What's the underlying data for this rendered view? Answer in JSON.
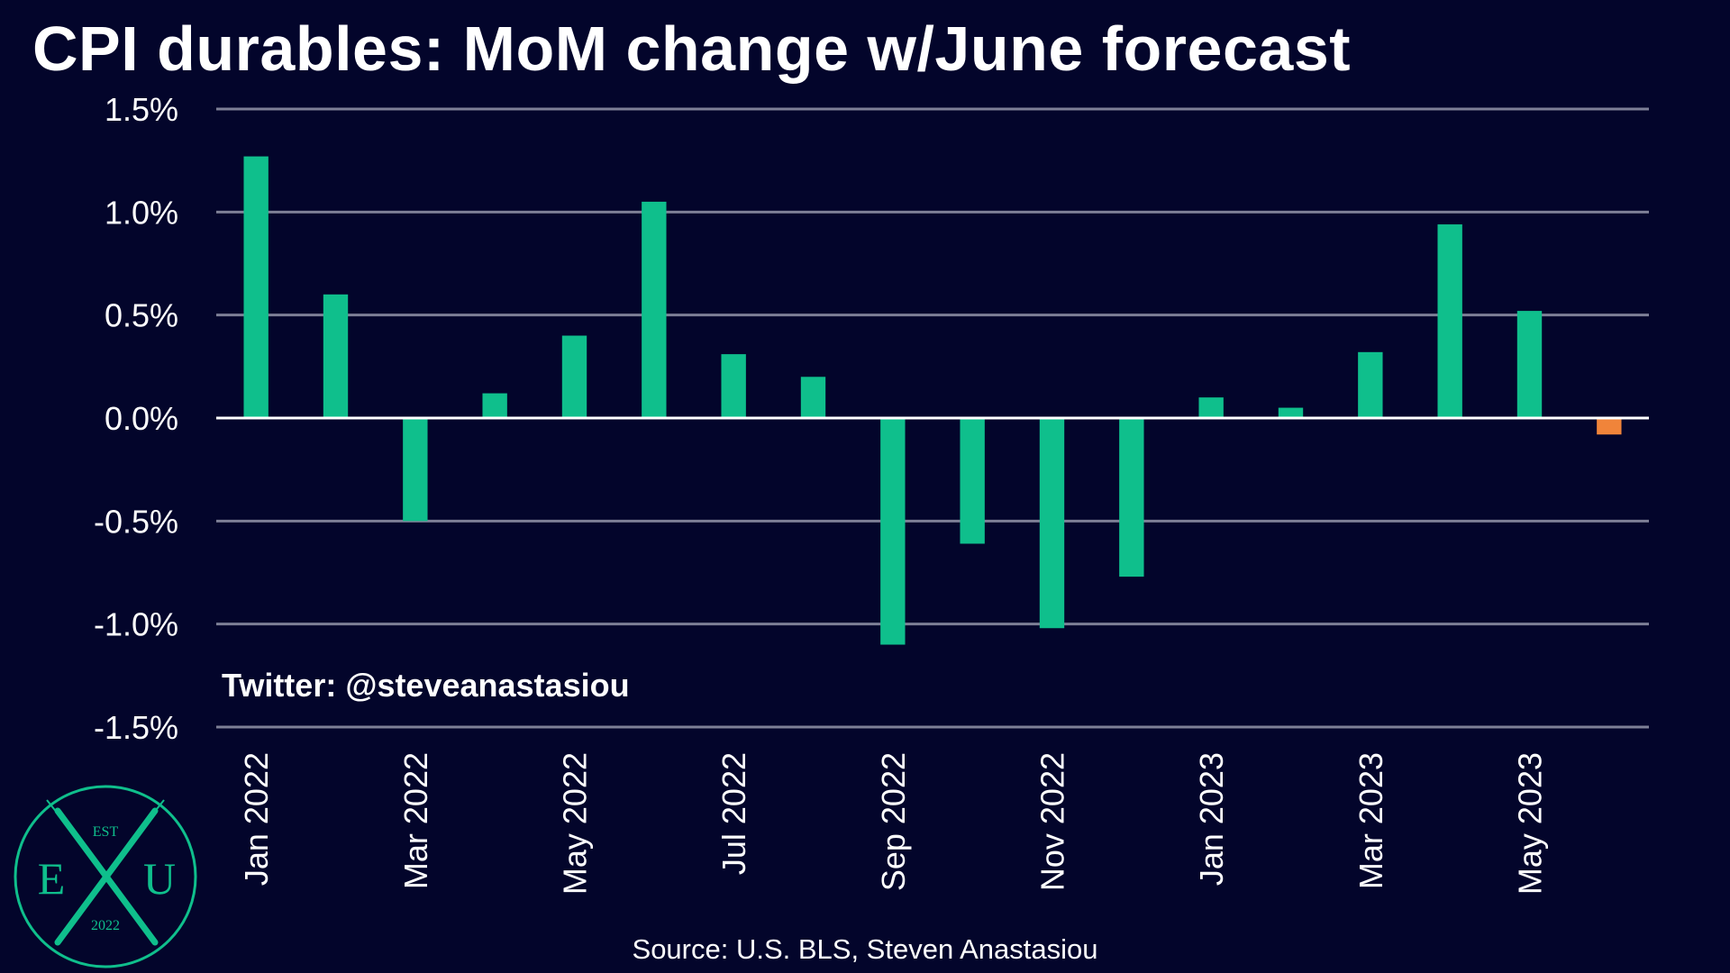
{
  "title": "CPI durables: MoM change w/June forecast",
  "watermark": "Twitter: @steveanastasiou",
  "source": "Source: U.S. BLS, Steven Anastasiou",
  "logo": {
    "top": "EST",
    "left": "E",
    "right": "U",
    "bottom": "2022"
  },
  "colors": {
    "background": "#03052b",
    "bar": "#0fbf8c",
    "forecast_bar": "#f0843a",
    "grid": "#7d7f96",
    "text": "#ffffff"
  },
  "chart_data": {
    "type": "bar",
    "categories": [
      "Jan 2022",
      "Feb 2022",
      "Mar 2022",
      "Apr 2022",
      "May 2022",
      "Jun 2022",
      "Jul 2022",
      "Aug 2022",
      "Sep 2022",
      "Oct 2022",
      "Nov 2022",
      "Dec 2022",
      "Jan 2023",
      "Feb 2023",
      "Mar 2023",
      "Apr 2023",
      "May 2023",
      "Jun 2023"
    ],
    "tick_labels": [
      "Jan 2022",
      "",
      "Mar 2022",
      "",
      "May 2022",
      "",
      "Jul 2022",
      "",
      "Sep 2022",
      "",
      "Nov 2022",
      "",
      "Jan 2023",
      "",
      "Mar 2023",
      "",
      "May 2023",
      ""
    ],
    "values": [
      1.27,
      0.6,
      -0.5,
      0.12,
      0.4,
      1.05,
      0.31,
      0.2,
      -1.1,
      -0.61,
      -1.02,
      -0.77,
      0.1,
      0.05,
      0.32,
      0.94,
      0.52,
      -0.08
    ],
    "forecast_index": 17,
    "ylim": [
      -1.5,
      1.5
    ],
    "yticks": [
      1.5,
      1.0,
      0.5,
      0.0,
      -0.5,
      -1.0,
      -1.5
    ],
    "ytick_labels": [
      "1.5%",
      "1.0%",
      "0.5%",
      "0.0%",
      "-0.5%",
      "-1.0%",
      "-1.5%"
    ],
    "grid": true,
    "legend": false
  }
}
